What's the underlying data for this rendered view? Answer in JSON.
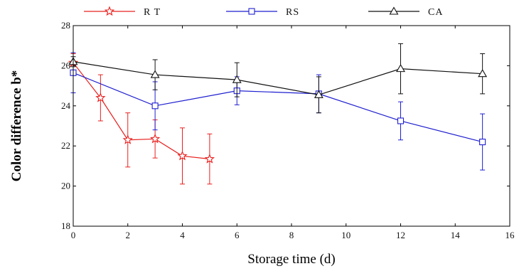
{
  "chart_data": {
    "type": "line",
    "xlabel": "Storage time (d)",
    "ylabel": "Color difference b*",
    "xlim": [
      0,
      16
    ],
    "ylim": [
      18,
      28
    ],
    "x_ticks": [
      0,
      2,
      4,
      6,
      8,
      10,
      12,
      14,
      16
    ],
    "y_ticks": [
      18,
      20,
      22,
      24,
      26,
      28
    ],
    "grid": false,
    "legend_position": "top",
    "series": [
      {
        "name": "R T",
        "color": "#e8201e",
        "marker": "star",
        "x": [
          0,
          1,
          2,
          3,
          4,
          5
        ],
        "y": [
          26.15,
          24.4,
          22.3,
          22.35,
          21.5,
          21.35
        ],
        "err": [
          0.45,
          1.15,
          1.35,
          0.95,
          1.4,
          1.25
        ]
      },
      {
        "name": "RS",
        "color": "#1f1fd0",
        "marker": "square",
        "x": [
          0,
          3,
          6,
          9,
          12,
          15
        ],
        "y": [
          25.65,
          24.0,
          24.75,
          24.6,
          23.25,
          22.2
        ],
        "err": [
          1.0,
          1.2,
          0.7,
          0.95,
          0.95,
          1.4
        ]
      },
      {
        "name": "CA",
        "color": "#111111",
        "marker": "triangle",
        "x": [
          0,
          3,
          6,
          9,
          12,
          15
        ],
        "y": [
          26.2,
          25.55,
          25.3,
          24.55,
          25.85,
          25.6
        ],
        "err": [
          0.25,
          0.75,
          0.85,
          0.9,
          1.25,
          1.0
        ]
      }
    ]
  }
}
